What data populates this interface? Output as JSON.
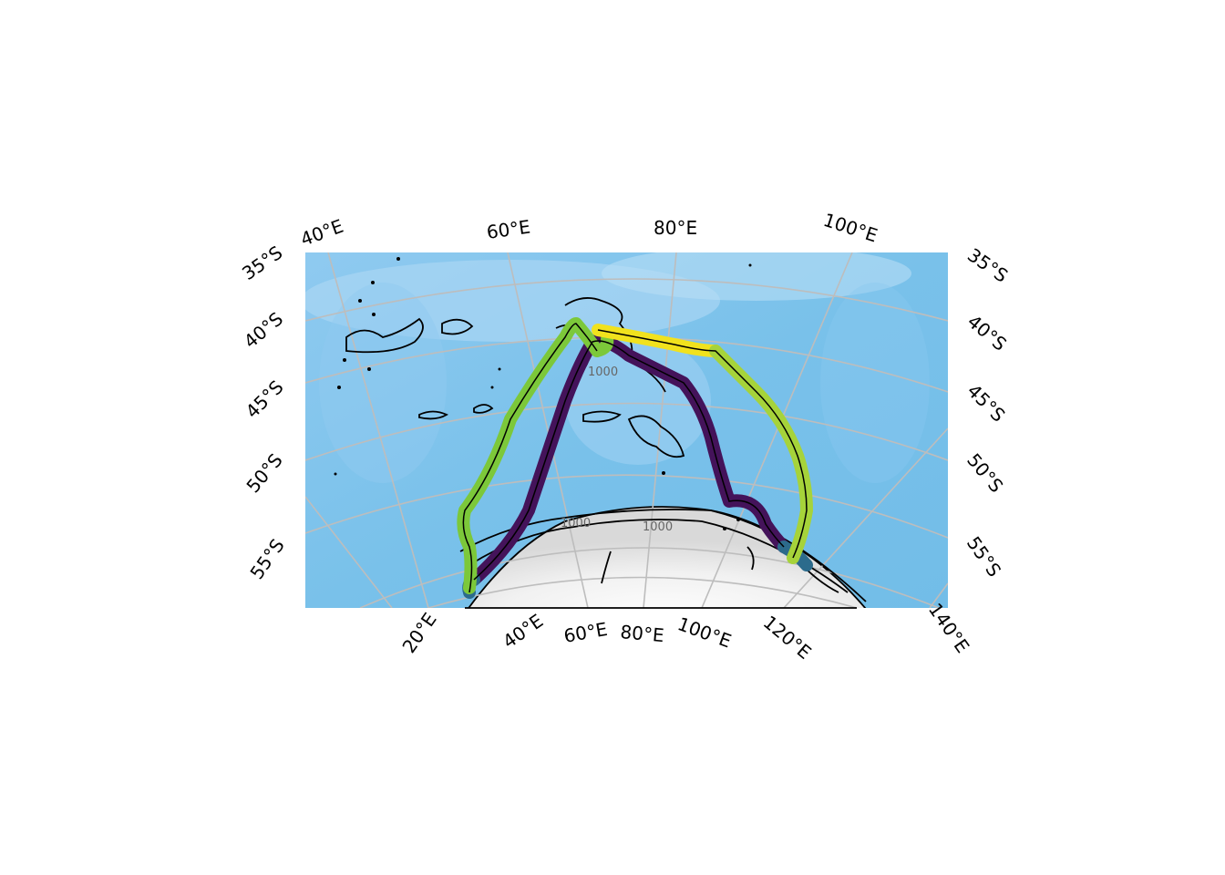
{
  "map": {
    "projection": "south-polar stereographic",
    "top_axis_labels": [
      "40°E",
      "60°E",
      "80°E",
      "100°E"
    ],
    "left_axis_labels": [
      "35°S",
      "40°S",
      "45°S",
      "50°S",
      "55°S"
    ],
    "right_axis_labels": [
      "35°S",
      "40°S",
      "45°S",
      "50°S",
      "55°S"
    ],
    "bottom_axis_labels": [
      "20°E",
      "40°E",
      "60°E",
      "80°E",
      "100°E",
      "120°E",
      "140°E"
    ],
    "contour_labels": [
      "1000",
      "1000",
      "1000"
    ],
    "colors": {
      "ocean": "#7fc4ec",
      "ocean_light": "#b9dcf4",
      "ice": "#efefef",
      "graticule": "#bdbdbd",
      "coastline": "#000000",
      "track_dark": "#44135a",
      "track_blue": "#2c6b8c",
      "track_green": "#7cc83a",
      "track_lightgreen": "#a6d33a",
      "track_yellow": "#f1e21d"
    },
    "tracks": [
      {
        "segment": 1,
        "color": "track_dark"
      },
      {
        "segment": 2,
        "color": "track_blue"
      },
      {
        "segment": 3,
        "color": "track_green"
      },
      {
        "segment": 4,
        "color": "track_yellow"
      },
      {
        "segment": 5,
        "color": "track_lightgreen"
      }
    ]
  }
}
